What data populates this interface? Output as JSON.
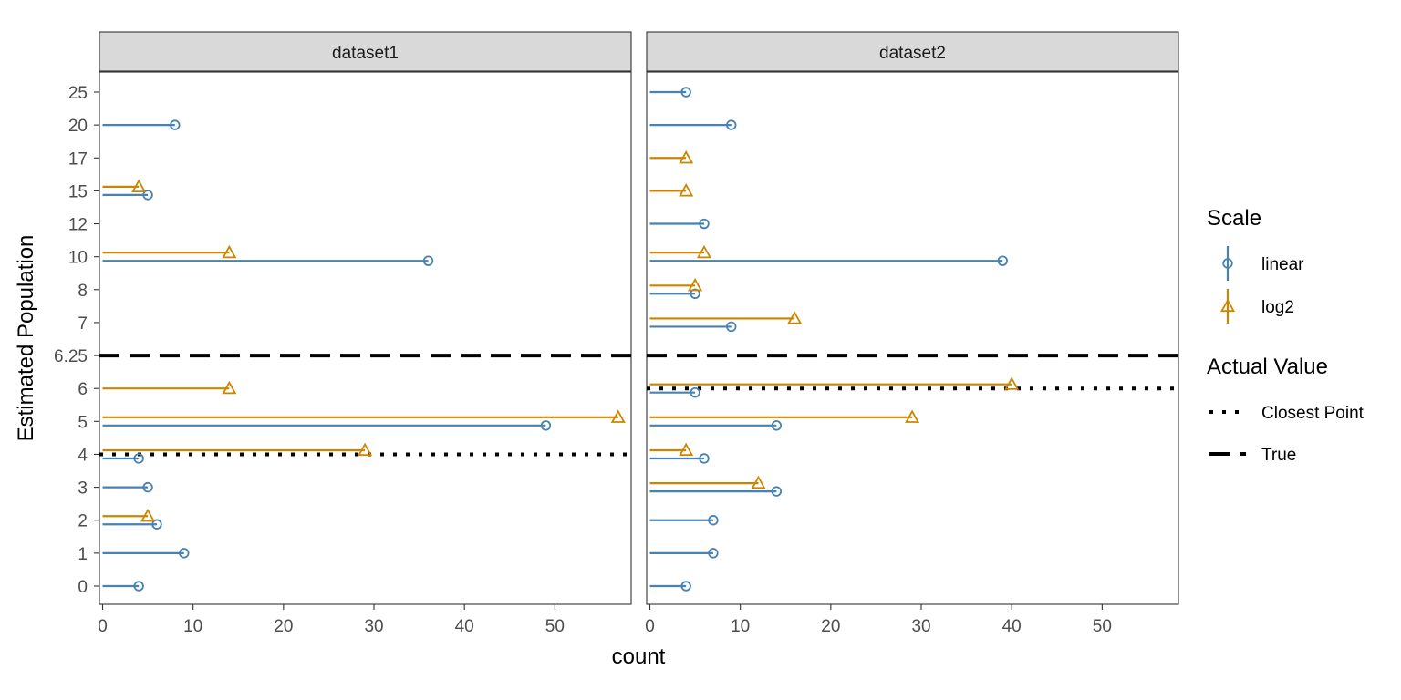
{
  "chart_data": {
    "type": "lollipop-facet",
    "xlabel": "count",
    "ylabel": "Estimated Population",
    "xlim": [
      0,
      57.5
    ],
    "x_ticks": [
      0,
      10,
      20,
      30,
      40,
      50
    ],
    "y_categories": [
      "0",
      "1",
      "2",
      "3",
      "4",
      "5",
      "6",
      "6.25",
      "7",
      "8",
      "10",
      "12",
      "15",
      "17",
      "20",
      "25"
    ],
    "facets": [
      {
        "name": "dataset1",
        "closest_point": "4",
        "true_value": "6.25",
        "series": [
          {
            "name": "linear",
            "points": [
              {
                "y": "0",
                "x": 4
              },
              {
                "y": "1",
                "x": 9
              },
              {
                "y": "2",
                "x": 6
              },
              {
                "y": "3",
                "x": 5
              },
              {
                "y": "4",
                "x": 4
              },
              {
                "y": "5",
                "x": 49
              },
              {
                "y": "10",
                "x": 36
              },
              {
                "y": "15",
                "x": 5
              },
              {
                "y": "20",
                "x": 8
              }
            ]
          },
          {
            "name": "log2",
            "points": [
              {
                "y": "2",
                "x": 5
              },
              {
                "y": "4",
                "x": 29
              },
              {
                "y": "5",
                "x": 57
              },
              {
                "y": "6",
                "x": 14
              },
              {
                "y": "10",
                "x": 14
              },
              {
                "y": "15",
                "x": 4
              }
            ]
          }
        ]
      },
      {
        "name": "dataset2",
        "closest_point": "6",
        "true_value": "6.25",
        "series": [
          {
            "name": "linear",
            "points": [
              {
                "y": "0",
                "x": 4
              },
              {
                "y": "1",
                "x": 7
              },
              {
                "y": "2",
                "x": 7
              },
              {
                "y": "3",
                "x": 14
              },
              {
                "y": "4",
                "x": 6
              },
              {
                "y": "5",
                "x": 14
              },
              {
                "y": "6",
                "x": 5
              },
              {
                "y": "7",
                "x": 9
              },
              {
                "y": "8",
                "x": 5
              },
              {
                "y": "10",
                "x": 39
              },
              {
                "y": "12",
                "x": 6
              },
              {
                "y": "20",
                "x": 9
              },
              {
                "y": "25",
                "x": 4
              }
            ]
          },
          {
            "name": "log2",
            "points": [
              {
                "y": "3",
                "x": 12
              },
              {
                "y": "4",
                "x": 4
              },
              {
                "y": "5",
                "x": 29
              },
              {
                "y": "6",
                "x": 40
              },
              {
                "y": "7",
                "x": 16
              },
              {
                "y": "8",
                "x": 5
              },
              {
                "y": "10",
                "x": 6
              },
              {
                "y": "15",
                "x": 4
              },
              {
                "y": "17",
                "x": 4
              }
            ]
          }
        ]
      }
    ],
    "legend": {
      "placement": "right",
      "scale_title": "Scale",
      "scale_items": [
        {
          "name": "linear",
          "color": "#4682B4",
          "shape": "circle"
        },
        {
          "name": "log2",
          "color": "#CD8500",
          "shape": "triangle"
        }
      ],
      "actual_title": "Actual Value",
      "actual_items": [
        {
          "name": "Closest Point",
          "linetype": "dotted"
        },
        {
          "name": "True",
          "linetype": "dashed"
        }
      ]
    },
    "colors": {
      "linear": "#4682B4",
      "log2": "#CD8500",
      "strip_bg": "#D9D9D9"
    },
    "grid": false
  }
}
